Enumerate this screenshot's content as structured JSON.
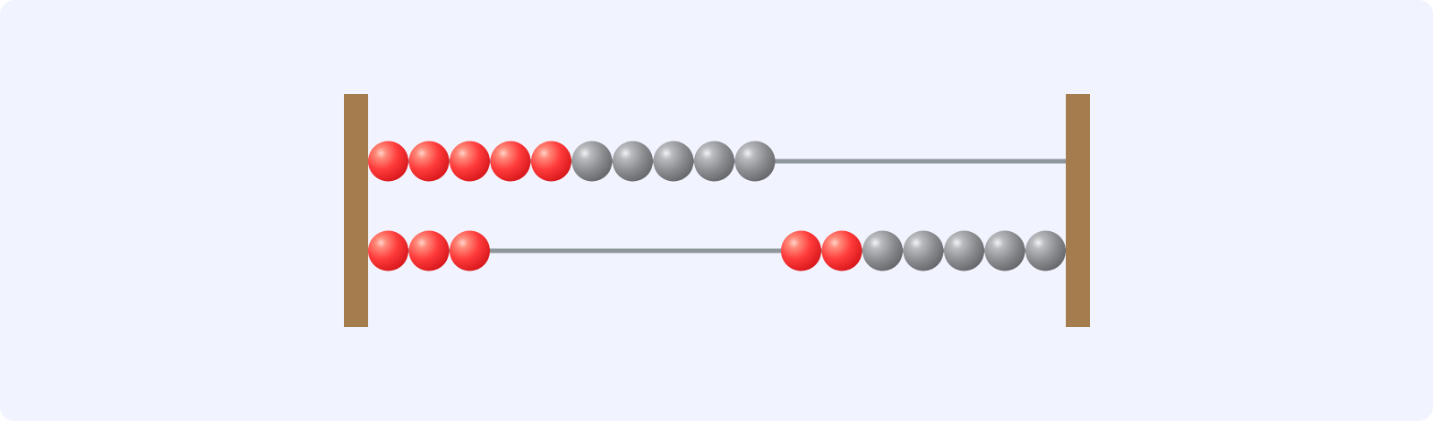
{
  "colors": {
    "background": "#f1f4fe",
    "frame": "#a57c4e",
    "rod": "#8f969c",
    "bead_red": "#ff3b3b",
    "bead_gray": "#8c8d91"
  },
  "rods": [
    {
      "name": "top-rod",
      "groups": [
        {
          "side": "left",
          "beads": [
            "red",
            "red",
            "red",
            "red",
            "red",
            "gray",
            "gray",
            "gray",
            "gray",
            "gray"
          ]
        }
      ]
    },
    {
      "name": "bottom-rod",
      "groups": [
        {
          "side": "left",
          "beads": [
            "red",
            "red",
            "red"
          ]
        },
        {
          "side": "right",
          "beads": [
            "red",
            "red",
            "gray",
            "gray",
            "gray",
            "gray",
            "gray"
          ]
        }
      ]
    }
  ]
}
